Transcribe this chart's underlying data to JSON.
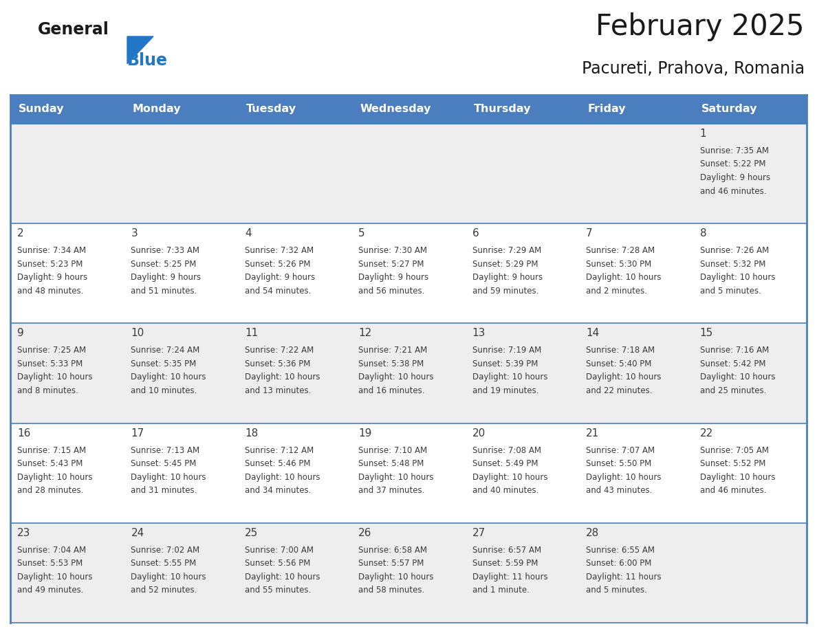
{
  "title": "February 2025",
  "subtitle": "Pacureti, Prahova, Romania",
  "header_bg_color": "#4a7ebf",
  "header_text_color": "#ffffff",
  "row_bg_odd": "#eeeeee",
  "row_bg_even": "#ffffff",
  "day_text_color": "#3a3a3a",
  "info_text_color": "#3a3a3a",
  "border_color": "#4a7ebf",
  "days_of_week": [
    "Sunday",
    "Monday",
    "Tuesday",
    "Wednesday",
    "Thursday",
    "Friday",
    "Saturday"
  ],
  "weeks": [
    [
      {
        "day": null,
        "sunrise": null,
        "sunset": null,
        "daylight": null
      },
      {
        "day": null,
        "sunrise": null,
        "sunset": null,
        "daylight": null
      },
      {
        "day": null,
        "sunrise": null,
        "sunset": null,
        "daylight": null
      },
      {
        "day": null,
        "sunrise": null,
        "sunset": null,
        "daylight": null
      },
      {
        "day": null,
        "sunrise": null,
        "sunset": null,
        "daylight": null
      },
      {
        "day": null,
        "sunrise": null,
        "sunset": null,
        "daylight": null
      },
      {
        "day": 1,
        "sunrise": "7:35 AM",
        "sunset": "5:22 PM",
        "daylight": "9 hours\nand 46 minutes."
      }
    ],
    [
      {
        "day": 2,
        "sunrise": "7:34 AM",
        "sunset": "5:23 PM",
        "daylight": "9 hours\nand 48 minutes."
      },
      {
        "day": 3,
        "sunrise": "7:33 AM",
        "sunset": "5:25 PM",
        "daylight": "9 hours\nand 51 minutes."
      },
      {
        "day": 4,
        "sunrise": "7:32 AM",
        "sunset": "5:26 PM",
        "daylight": "9 hours\nand 54 minutes."
      },
      {
        "day": 5,
        "sunrise": "7:30 AM",
        "sunset": "5:27 PM",
        "daylight": "9 hours\nand 56 minutes."
      },
      {
        "day": 6,
        "sunrise": "7:29 AM",
        "sunset": "5:29 PM",
        "daylight": "9 hours\nand 59 minutes."
      },
      {
        "day": 7,
        "sunrise": "7:28 AM",
        "sunset": "5:30 PM",
        "daylight": "10 hours\nand 2 minutes."
      },
      {
        "day": 8,
        "sunrise": "7:26 AM",
        "sunset": "5:32 PM",
        "daylight": "10 hours\nand 5 minutes."
      }
    ],
    [
      {
        "day": 9,
        "sunrise": "7:25 AM",
        "sunset": "5:33 PM",
        "daylight": "10 hours\nand 8 minutes."
      },
      {
        "day": 10,
        "sunrise": "7:24 AM",
        "sunset": "5:35 PM",
        "daylight": "10 hours\nand 10 minutes."
      },
      {
        "day": 11,
        "sunrise": "7:22 AM",
        "sunset": "5:36 PM",
        "daylight": "10 hours\nand 13 minutes."
      },
      {
        "day": 12,
        "sunrise": "7:21 AM",
        "sunset": "5:38 PM",
        "daylight": "10 hours\nand 16 minutes."
      },
      {
        "day": 13,
        "sunrise": "7:19 AM",
        "sunset": "5:39 PM",
        "daylight": "10 hours\nand 19 minutes."
      },
      {
        "day": 14,
        "sunrise": "7:18 AM",
        "sunset": "5:40 PM",
        "daylight": "10 hours\nand 22 minutes."
      },
      {
        "day": 15,
        "sunrise": "7:16 AM",
        "sunset": "5:42 PM",
        "daylight": "10 hours\nand 25 minutes."
      }
    ],
    [
      {
        "day": 16,
        "sunrise": "7:15 AM",
        "sunset": "5:43 PM",
        "daylight": "10 hours\nand 28 minutes."
      },
      {
        "day": 17,
        "sunrise": "7:13 AM",
        "sunset": "5:45 PM",
        "daylight": "10 hours\nand 31 minutes."
      },
      {
        "day": 18,
        "sunrise": "7:12 AM",
        "sunset": "5:46 PM",
        "daylight": "10 hours\nand 34 minutes."
      },
      {
        "day": 19,
        "sunrise": "7:10 AM",
        "sunset": "5:48 PM",
        "daylight": "10 hours\nand 37 minutes."
      },
      {
        "day": 20,
        "sunrise": "7:08 AM",
        "sunset": "5:49 PM",
        "daylight": "10 hours\nand 40 minutes."
      },
      {
        "day": 21,
        "sunrise": "7:07 AM",
        "sunset": "5:50 PM",
        "daylight": "10 hours\nand 43 minutes."
      },
      {
        "day": 22,
        "sunrise": "7:05 AM",
        "sunset": "5:52 PM",
        "daylight": "10 hours\nand 46 minutes."
      }
    ],
    [
      {
        "day": 23,
        "sunrise": "7:04 AM",
        "sunset": "5:53 PM",
        "daylight": "10 hours\nand 49 minutes."
      },
      {
        "day": 24,
        "sunrise": "7:02 AM",
        "sunset": "5:55 PM",
        "daylight": "10 hours\nand 52 minutes."
      },
      {
        "day": 25,
        "sunrise": "7:00 AM",
        "sunset": "5:56 PM",
        "daylight": "10 hours\nand 55 minutes."
      },
      {
        "day": 26,
        "sunrise": "6:58 AM",
        "sunset": "5:57 PM",
        "daylight": "10 hours\nand 58 minutes."
      },
      {
        "day": 27,
        "sunrise": "6:57 AM",
        "sunset": "5:59 PM",
        "daylight": "11 hours\nand 1 minute."
      },
      {
        "day": 28,
        "sunrise": "6:55 AM",
        "sunset": "6:00 PM",
        "daylight": "11 hours\nand 5 minutes."
      },
      {
        "day": null,
        "sunrise": null,
        "sunset": null,
        "daylight": null
      }
    ]
  ],
  "logo_color_general": "#1a1a1a",
  "logo_color_blue": "#2176c7",
  "logo_triangle_color": "#2176c7",
  "fig_width": 11.88,
  "fig_height": 9.18,
  "dpi": 100
}
